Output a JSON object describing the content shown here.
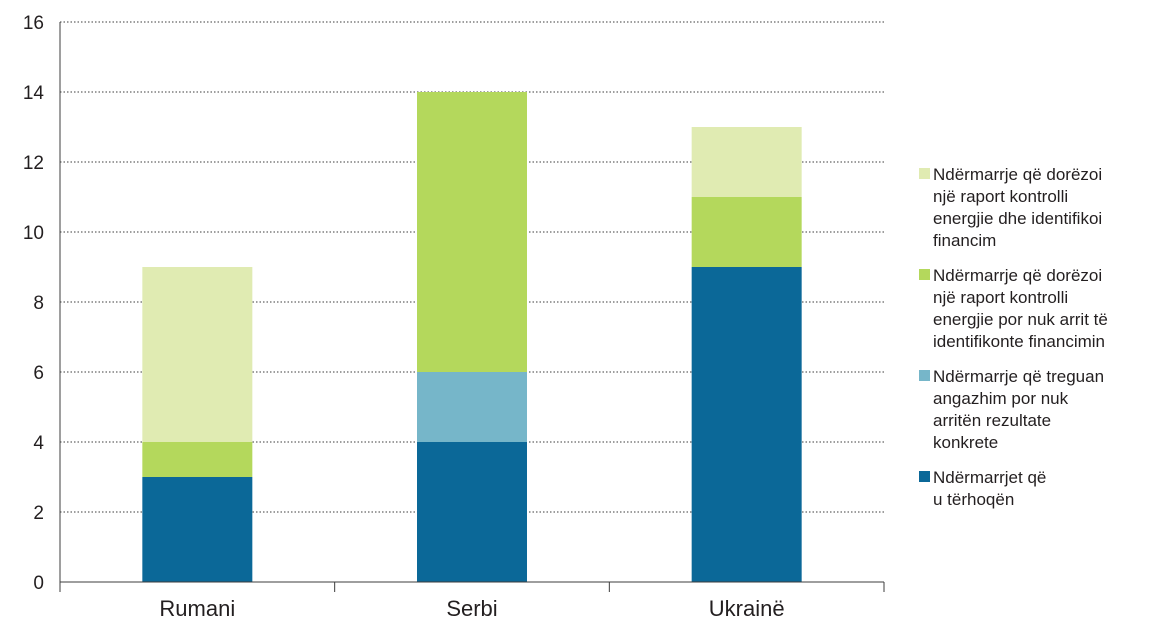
{
  "chart_data": {
    "type": "bar",
    "stacked": true,
    "categories": [
      "Rumani",
      "Serbi",
      "Ukrainë"
    ],
    "ylim": [
      0,
      16
    ],
    "yticks": [
      0,
      2,
      4,
      6,
      8,
      10,
      12,
      14,
      16
    ],
    "grid": true,
    "legend_position": "right",
    "series": [
      {
        "name": "Ndërmarrjet që u tërhoqën",
        "legend_lines": [
          "Ndërmarrjet që",
          "u tërhoqën"
        ],
        "color": "#0b6898",
        "values": [
          3,
          4,
          9
        ]
      },
      {
        "name": "Ndërmarrje që treguan angazhim por nuk arritën rezultate konkrete",
        "legend_lines": [
          "Ndërmarrje që treguan",
          "angazhim por nuk",
          "arritën rezultate",
          "konkrete"
        ],
        "color": "#76b6c9",
        "values": [
          0,
          2,
          0
        ]
      },
      {
        "name": "Ndërmarrje që dorëzoi një raport kontrolli energjie por nuk arrit të identifikonte financimin",
        "legend_lines": [
          "Ndërmarrje që dorëzoi",
          "një raport kontrolli",
          "energjie por nuk arrit të",
          "identifikonte financimin"
        ],
        "color": "#b4d85c",
        "values": [
          1,
          8,
          2
        ]
      },
      {
        "name": "Ndërmarrje që dorëzoi një raport kontrolli energjie dhe identifikoi financim",
        "legend_lines": [
          "Ndërmarrje që dorëzoi",
          "një raport kontrolli",
          "energjie dhe identifikoi",
          "financim"
        ],
        "color": "#e0ebb2",
        "values": [
          5,
          0,
          2
        ]
      }
    ],
    "legend_order": [
      3,
      2,
      1,
      0
    ]
  }
}
